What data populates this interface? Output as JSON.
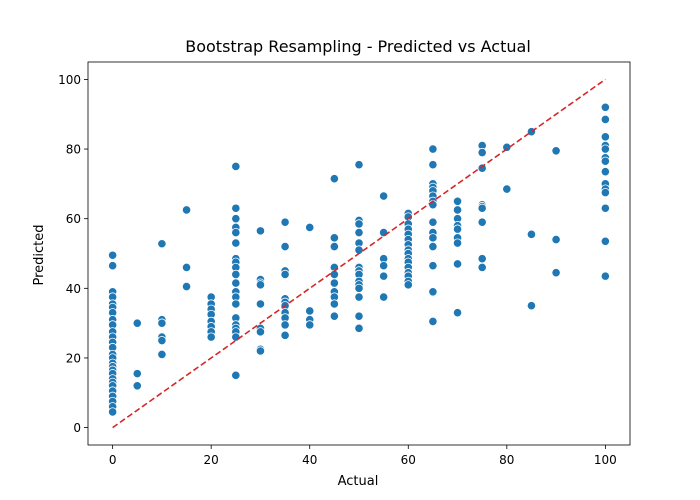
{
  "chart_data": {
    "type": "scatter",
    "title": "Bootstrap Resampling - Predicted vs Actual",
    "xlabel": "Actual",
    "ylabel": "Predicted",
    "xlim": [
      -5,
      105
    ],
    "ylim": [
      -5,
      105
    ],
    "xticks": [
      0,
      20,
      40,
      60,
      80,
      100
    ],
    "yticks": [
      0,
      20,
      40,
      60,
      80,
      100
    ],
    "grid": false,
    "colors": {
      "points": "#1f77b4",
      "reference_line": "#d62728"
    },
    "reference_line": {
      "style": "dashed",
      "from": [
        0,
        0
      ],
      "to": [
        100,
        100
      ]
    },
    "series": [
      {
        "points": [
          [
            0,
            49.5
          ],
          [
            0,
            46.5
          ],
          [
            0,
            39
          ],
          [
            0,
            37.5
          ],
          [
            0,
            35.5
          ],
          [
            0,
            34.5
          ],
          [
            0,
            33
          ],
          [
            0,
            31
          ],
          [
            0,
            29.5
          ],
          [
            0,
            27.5
          ],
          [
            0,
            26
          ],
          [
            0,
            24.5
          ],
          [
            0,
            23
          ],
          [
            0,
            21
          ],
          [
            0,
            20
          ],
          [
            0,
            18.5
          ],
          [
            0,
            17.5
          ],
          [
            0,
            16.5
          ],
          [
            0,
            15.5
          ],
          [
            0,
            14
          ],
          [
            0,
            13
          ],
          [
            0,
            12
          ],
          [
            0,
            10.5
          ],
          [
            0,
            9
          ],
          [
            0,
            7.5
          ],
          [
            0,
            6
          ],
          [
            0,
            4.5
          ],
          [
            5,
            30
          ],
          [
            5,
            15.5
          ],
          [
            5,
            12
          ],
          [
            10,
            52.8
          ],
          [
            10,
            31
          ],
          [
            10,
            30
          ],
          [
            10,
            26
          ],
          [
            10,
            25
          ],
          [
            10,
            21
          ],
          [
            15,
            62.5
          ],
          [
            15,
            46
          ],
          [
            15,
            40.5
          ],
          [
            20,
            37.5
          ],
          [
            20,
            35.5
          ],
          [
            20,
            34
          ],
          [
            20,
            32.5
          ],
          [
            20,
            30.5
          ],
          [
            20,
            29
          ],
          [
            20,
            27.5
          ],
          [
            20,
            26
          ],
          [
            25,
            75
          ],
          [
            25,
            63
          ],
          [
            25,
            60
          ],
          [
            25,
            57.5
          ],
          [
            25,
            56
          ],
          [
            25,
            53
          ],
          [
            25,
            48.5
          ],
          [
            25,
            47.5
          ],
          [
            25,
            46
          ],
          [
            25,
            44
          ],
          [
            25,
            41.5
          ],
          [
            25,
            39
          ],
          [
            25,
            37.5
          ],
          [
            25,
            35.5
          ],
          [
            25,
            31.5
          ],
          [
            25,
            29.5
          ],
          [
            25,
            28.5
          ],
          [
            25,
            27.5
          ],
          [
            25,
            26
          ],
          [
            25,
            15
          ],
          [
            30,
            56.5
          ],
          [
            30,
            42.5
          ],
          [
            30,
            41.5
          ],
          [
            30,
            41
          ],
          [
            30,
            35.5
          ],
          [
            30,
            28.5
          ],
          [
            30,
            27.5
          ],
          [
            30,
            22.5
          ],
          [
            30,
            22
          ],
          [
            35,
            59
          ],
          [
            35,
            52
          ],
          [
            35,
            45
          ],
          [
            35,
            44
          ],
          [
            35,
            37
          ],
          [
            35,
            36
          ],
          [
            35,
            35
          ],
          [
            35,
            33
          ],
          [
            35,
            31.5
          ],
          [
            35,
            29.5
          ],
          [
            35,
            26.5
          ],
          [
            40,
            57.5
          ],
          [
            40,
            33.5
          ],
          [
            40,
            31
          ],
          [
            40,
            29.5
          ],
          [
            45,
            71.5
          ],
          [
            45,
            54.5
          ],
          [
            45,
            52
          ],
          [
            45,
            46
          ],
          [
            45,
            44
          ],
          [
            45,
            41.5
          ],
          [
            45,
            39
          ],
          [
            45,
            37.5
          ],
          [
            45,
            35.5
          ],
          [
            45,
            32
          ],
          [
            50,
            75.5
          ],
          [
            50,
            59.5
          ],
          [
            50,
            58.5
          ],
          [
            50,
            56
          ],
          [
            50,
            53
          ],
          [
            50,
            51
          ],
          [
            50,
            46
          ],
          [
            50,
            45
          ],
          [
            50,
            44
          ],
          [
            50,
            42
          ],
          [
            50,
            41
          ],
          [
            50,
            40
          ],
          [
            50,
            37.5
          ],
          [
            50,
            32
          ],
          [
            50,
            28.5
          ],
          [
            55,
            66.5
          ],
          [
            55,
            56
          ],
          [
            55,
            48.5
          ],
          [
            55,
            46.5
          ],
          [
            55,
            43.5
          ],
          [
            55,
            37.5
          ],
          [
            60,
            61.5
          ],
          [
            60,
            60.5
          ],
          [
            60,
            58.5
          ],
          [
            60,
            57
          ],
          [
            60,
            55.5
          ],
          [
            60,
            54
          ],
          [
            60,
            52.5
          ],
          [
            60,
            51
          ],
          [
            60,
            50
          ],
          [
            60,
            48.5
          ],
          [
            60,
            47.5
          ],
          [
            60,
            46
          ],
          [
            60,
            44.5
          ],
          [
            60,
            43.5
          ],
          [
            60,
            42
          ],
          [
            60,
            41
          ],
          [
            65,
            80
          ],
          [
            65,
            75.5
          ],
          [
            65,
            70
          ],
          [
            65,
            69
          ],
          [
            65,
            68
          ],
          [
            65,
            66.5
          ],
          [
            65,
            65
          ],
          [
            65,
            64
          ],
          [
            65,
            59
          ],
          [
            65,
            56
          ],
          [
            65,
            54.5
          ],
          [
            65,
            52
          ],
          [
            65,
            46.5
          ],
          [
            65,
            39
          ],
          [
            65,
            30.5
          ],
          [
            70,
            65
          ],
          [
            70,
            62.5
          ],
          [
            70,
            60
          ],
          [
            70,
            58
          ],
          [
            70,
            57
          ],
          [
            70,
            54.5
          ],
          [
            70,
            53
          ],
          [
            70,
            47
          ],
          [
            70,
            33
          ],
          [
            75,
            81
          ],
          [
            75,
            79
          ],
          [
            75,
            74.5
          ],
          [
            75,
            64
          ],
          [
            75,
            63.5
          ],
          [
            75,
            63
          ],
          [
            75,
            59
          ],
          [
            75,
            48.5
          ],
          [
            75,
            46
          ],
          [
            80,
            80.5
          ],
          [
            80,
            68.5
          ],
          [
            85,
            85
          ],
          [
            85,
            55.5
          ],
          [
            85,
            35
          ],
          [
            90,
            79.5
          ],
          [
            90,
            54
          ],
          [
            90,
            44.5
          ],
          [
            100,
            92
          ],
          [
            100,
            88.5
          ],
          [
            100,
            83.5
          ],
          [
            100,
            81
          ],
          [
            100,
            80
          ],
          [
            100,
            77.5
          ],
          [
            100,
            76.5
          ],
          [
            100,
            73.5
          ],
          [
            100,
            70
          ],
          [
            100,
            68.5
          ],
          [
            100,
            67.5
          ],
          [
            100,
            63
          ],
          [
            100,
            53.5
          ],
          [
            100,
            43.5
          ]
        ]
      }
    ]
  }
}
